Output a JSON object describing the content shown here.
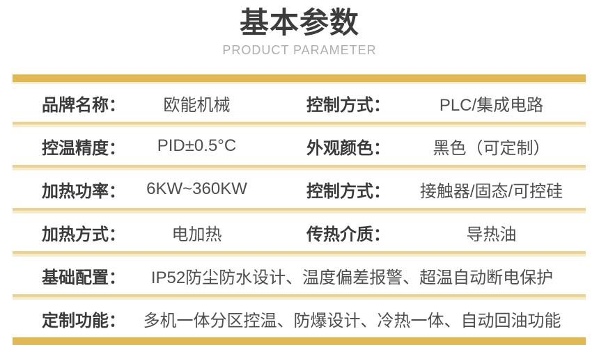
{
  "header": {
    "title": "基本参数",
    "subtitle": "PRODUCT PARAMETER"
  },
  "colors": {
    "accent_gold": "#e0b854",
    "separator_gold_top": "#ead296",
    "separator_cream": "#f7edc8",
    "title_text": "#3c3c3c",
    "label_text": "#3a3a3a",
    "value_text": "#4e4e4e",
    "subtitle_text": "#aeaeae"
  },
  "table": {
    "rows": [
      {
        "type": "double",
        "cells": [
          {
            "label": "品牌名称：",
            "value": "欧能机械"
          },
          {
            "label": "控制方式：",
            "value": "PLC/集成电路"
          }
        ]
      },
      {
        "type": "double",
        "cells": [
          {
            "label": "控温精度：",
            "value": "PID±0.5°C"
          },
          {
            "label": "外观颜色：",
            "value": "黑色（可定制）"
          }
        ]
      },
      {
        "type": "double",
        "cells": [
          {
            "label": "加热功率：",
            "value": "6KW~360KW"
          },
          {
            "label": "控制方式：",
            "value": "接触器/固态/可控硅"
          }
        ]
      },
      {
        "type": "double",
        "cells": [
          {
            "label": "加热方式：",
            "value": "电加热"
          },
          {
            "label": "传热介质：",
            "value": "导热油"
          }
        ]
      },
      {
        "type": "single",
        "cells": [
          {
            "label": "基础配置：",
            "value": "IP52防尘防水设计、温度偏差报警、超温自动断电保护"
          }
        ]
      },
      {
        "type": "single",
        "cells": [
          {
            "label": "定制功能：",
            "value": "多机一体分区控温、防爆设计、冷热一体、自动回油功能"
          }
        ]
      }
    ]
  }
}
